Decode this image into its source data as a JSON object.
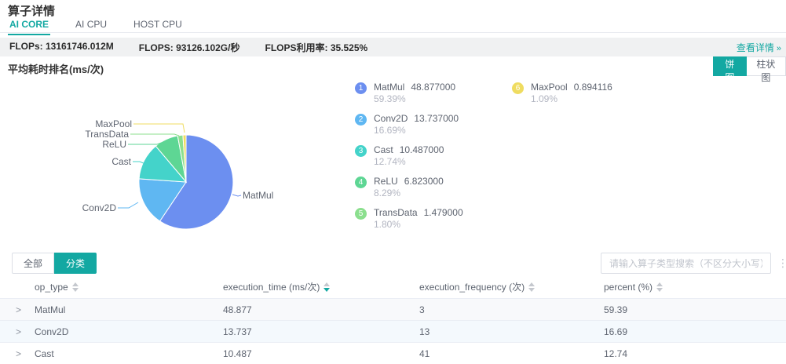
{
  "accent_color": "#13A8A2",
  "header": {
    "title": "算子详情",
    "tabs": [
      {
        "id": "ai-core",
        "label": "AI CORE",
        "active": true
      },
      {
        "id": "ai-cpu",
        "label": "AI CPU",
        "active": false
      },
      {
        "id": "host-cpu",
        "label": "HOST CPU",
        "active": false
      }
    ]
  },
  "flops_bar": {
    "metrics": [
      "FLOPs: 13161746.012M",
      "FLOPS: 93126.102G/秒",
      "FLOPS利用率: 35.525%"
    ],
    "detail_link": "查看详情",
    "detail_arrow": "»"
  },
  "chart_header": {
    "title": "平均耗时排名(ms/次)",
    "toggle": [
      {
        "id": "pie",
        "label": "饼图",
        "active": true
      },
      {
        "id": "bar",
        "label": "柱状图",
        "active": false
      }
    ]
  },
  "chart_data": {
    "type": "pie",
    "title": "平均耗时排名(ms/次)",
    "unit": "ms/次",
    "legend_position": "right",
    "series": [
      {
        "rank": 1,
        "name": "MatMul",
        "value": 48.877,
        "value_label": "48.877000",
        "percent_label": "59.39%",
        "color": "#6C8FF0"
      },
      {
        "rank": 2,
        "name": "Conv2D",
        "value": 13.737,
        "value_label": "13.737000",
        "percent_label": "16.69%",
        "color": "#5FB7F2"
      },
      {
        "rank": 3,
        "name": "Cast",
        "value": 10.487,
        "value_label": "10.487000",
        "percent_label": "12.74%",
        "color": "#44D3CA"
      },
      {
        "rank": 4,
        "name": "ReLU",
        "value": 6.823,
        "value_label": "6.823000",
        "percent_label": "8.29%",
        "color": "#5ED694"
      },
      {
        "rank": 5,
        "name": "TransData",
        "value": 1.479,
        "value_label": "1.479000",
        "percent_label": "1.80%",
        "color": "#8BDF8E"
      },
      {
        "rank": 6,
        "name": "MaxPool",
        "value": 0.894116,
        "value_label": "0.894116",
        "percent_label": "1.09%",
        "color": "#EFDC60"
      }
    ]
  },
  "filter_bar": {
    "buttons": [
      {
        "id": "all",
        "label": "全部",
        "active": false
      },
      {
        "id": "category",
        "label": "分类",
        "active": true
      }
    ],
    "search_placeholder": "请输入算子类型搜索（不区分大小写）"
  },
  "table": {
    "columns": [
      {
        "id": "op_type",
        "label": "op_type",
        "sort": null
      },
      {
        "id": "execution_time",
        "label": "execution_time (ms/次)",
        "sort": "desc"
      },
      {
        "id": "execution_frequency",
        "label": "execution_frequency (次)",
        "sort": null
      },
      {
        "id": "percent",
        "label": "percent (%)",
        "sort": null
      }
    ],
    "rows": [
      {
        "op_type": "MatMul",
        "execution_time": "48.877",
        "execution_frequency": "3",
        "percent": "59.39"
      },
      {
        "op_type": "Conv2D",
        "execution_time": "13.737",
        "execution_frequency": "13",
        "percent": "16.69"
      },
      {
        "op_type": "Cast",
        "execution_time": "10.487",
        "execution_frequency": "41",
        "percent": "12.74"
      }
    ]
  }
}
